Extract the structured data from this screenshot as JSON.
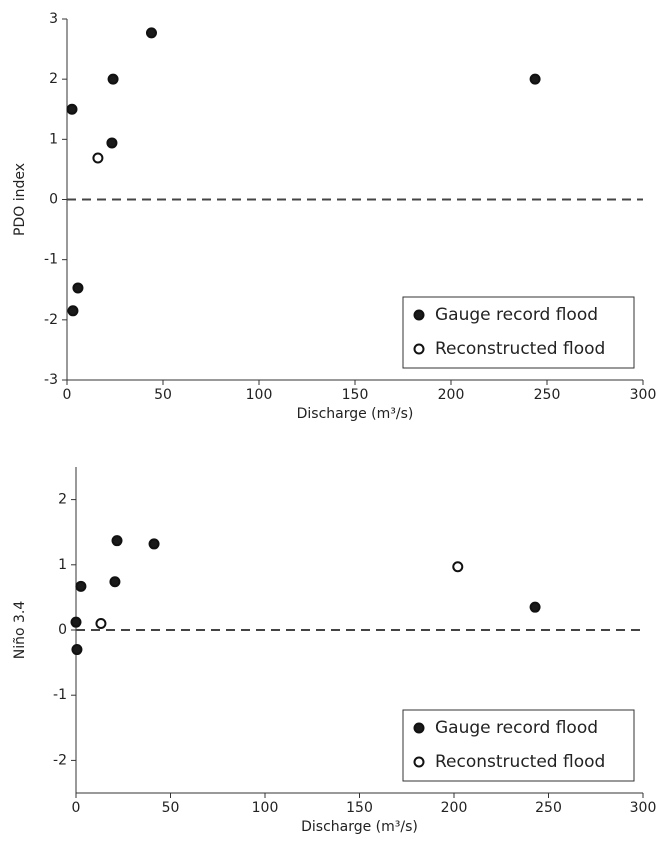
{
  "chart_data": [
    {
      "type": "scatter",
      "xlabel": "Discharge (m³/s)",
      "ylabel": "PDO index",
      "xlim": [
        0,
        300
      ],
      "xticks": [
        0,
        50,
        100,
        150,
        200,
        250,
        300
      ],
      "ylim": [
        -3,
        3
      ],
      "yticks": [
        -3,
        -2,
        -1,
        0,
        1,
        2,
        3
      ],
      "hline": 0,
      "legend": "lower right",
      "series": [
        {
          "name": "Gauge record flood",
          "color": "#1a1a1a",
          "x": [
            2.6,
            44,
            24,
            23.4,
            243.8,
            5.7,
            3.1
          ],
          "values": [
            1.5,
            2.77,
            2.0,
            0.94,
            2.0,
            -1.47,
            -1.85
          ]
        },
        {
          "name": "Reconstructed flood",
          "color": "#ffffff",
          "x": [
            16.1
          ],
          "values": [
            0.69
          ]
        }
      ]
    },
    {
      "type": "scatter",
      "xlabel": "Discharge (m³/s)",
      "ylabel": "Niño 3.4",
      "xlim": [
        0,
        300
      ],
      "xticks": [
        0,
        50,
        100,
        150,
        200,
        250,
        300
      ],
      "ylim": [
        -2.5,
        2.5
      ],
      "yticks": [
        -2,
        -1,
        0,
        1,
        2
      ],
      "hline": 0,
      "legend": "lower right",
      "series": [
        {
          "name": "Gauge record flood",
          "color": "#1a1a1a",
          "x": [
            21.7,
            41.3,
            2.6,
            20.6,
            0,
            0.5,
            242.9
          ],
          "values": [
            1.37,
            1.32,
            0.67,
            0.74,
            0.12,
            -0.3,
            0.35
          ]
        },
        {
          "name": "Reconstructed flood",
          "color": "#ffffff",
          "x": [
            13.2,
            202
          ],
          "values": [
            0.1,
            0.97
          ]
        }
      ]
    }
  ]
}
